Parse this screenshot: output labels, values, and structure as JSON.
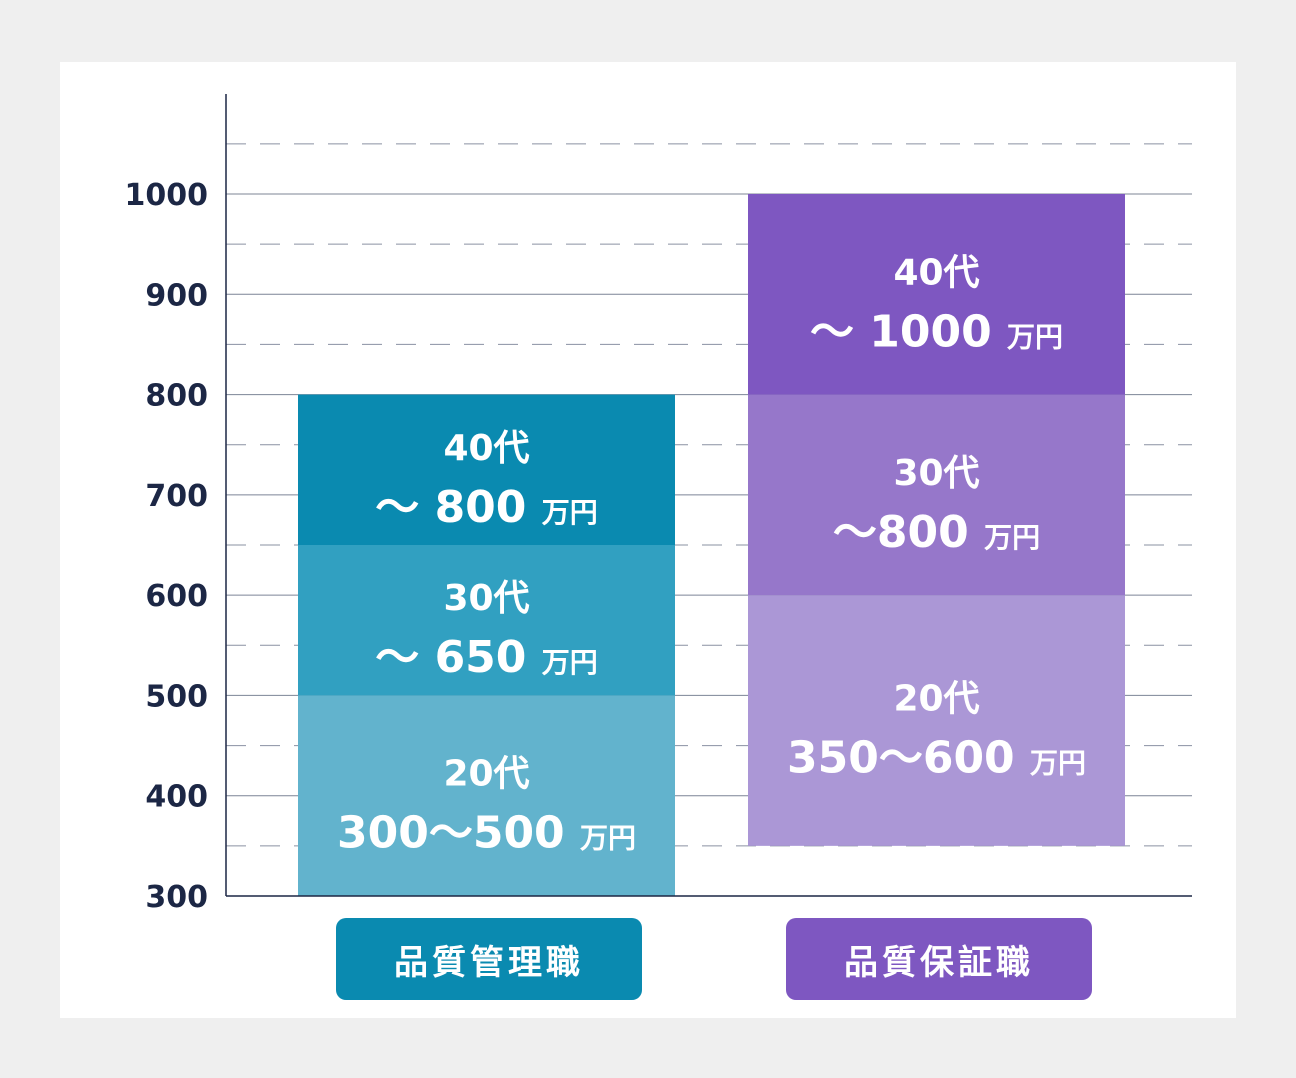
{
  "chart_data": {
    "type": "bar",
    "stacked": true,
    "ylim": [
      300,
      1000
    ],
    "yticks": [
      300,
      400,
      500,
      600,
      700,
      800,
      900,
      1000
    ],
    "grid": true,
    "categories": [
      "品質管理職",
      "品質保証職"
    ],
    "bars": [
      {
        "category": "品質管理職",
        "color": "#0a8ab0",
        "segments": [
          {
            "from": 300,
            "to": 500,
            "color": "#62b3cd",
            "line1": "20代",
            "value": "300〜500",
            "unit": "万円"
          },
          {
            "from": 500,
            "to": 650,
            "color": "#31a0c1",
            "line1": "30代",
            "value": "〜 650",
            "unit": "万円"
          },
          {
            "from": 650,
            "to": 800,
            "color": "#0a8ab0",
            "line1": "40代",
            "value": "〜 800",
            "unit": "万円"
          }
        ]
      },
      {
        "category": "品質保証職",
        "color": "#7e57c1",
        "segments": [
          {
            "from": 350,
            "to": 600,
            "color": "#ab97d6",
            "line1": "20代",
            "value": "350〜600",
            "unit": "万円"
          },
          {
            "from": 600,
            "to": 800,
            "color": "#9677ca",
            "line1": "30代",
            "value": "〜800",
            "unit": "万円"
          },
          {
            "from": 800,
            "to": 1000,
            "color": "#7e57c1",
            "line1": "40代",
            "value": "〜 1000",
            "unit": "万円"
          }
        ]
      }
    ]
  }
}
